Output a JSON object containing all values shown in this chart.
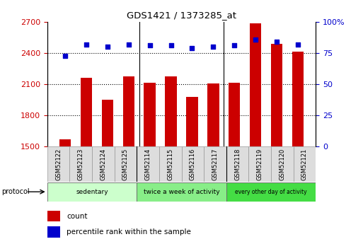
{
  "title": "GDS1421 / 1373285_at",
  "samples": [
    "GSM52122",
    "GSM52123",
    "GSM52124",
    "GSM52125",
    "GSM52114",
    "GSM52115",
    "GSM52116",
    "GSM52117",
    "GSM52118",
    "GSM52119",
    "GSM52120",
    "GSM52121"
  ],
  "counts": [
    1570,
    2160,
    1950,
    2175,
    2115,
    2175,
    1980,
    2110,
    2115,
    2690,
    2490,
    2415
  ],
  "percentiles": [
    73,
    82,
    80,
    82,
    81,
    81,
    79,
    80,
    81,
    86,
    84,
    82
  ],
  "ylim_left": [
    1500,
    2700
  ],
  "ylim_right": [
    0,
    100
  ],
  "yticks_left": [
    1500,
    1800,
    2100,
    2400,
    2700
  ],
  "yticks_right": [
    0,
    25,
    50,
    75,
    100
  ],
  "bar_color": "#cc0000",
  "dot_color": "#0000cc",
  "groups": [
    {
      "label": "sedentary",
      "start": 0,
      "end": 4
    },
    {
      "label": "twice a week of activity",
      "start": 4,
      "end": 8
    },
    {
      "label": "every other day of activity",
      "start": 8,
      "end": 12
    }
  ],
  "group_colors": [
    "#ccffcc",
    "#88ee88",
    "#44dd44"
  ],
  "protocol_label": "protocol",
  "legend_count": "count",
  "legend_percentile": "percentile rank within the sample",
  "bar_color_red": "#cc0000",
  "dot_color_blue": "#0000cc",
  "grid_dotted_vals": [
    1800,
    2100,
    2400
  ],
  "right_tick_labels": [
    "0",
    "25",
    "50",
    "75",
    "100%"
  ]
}
